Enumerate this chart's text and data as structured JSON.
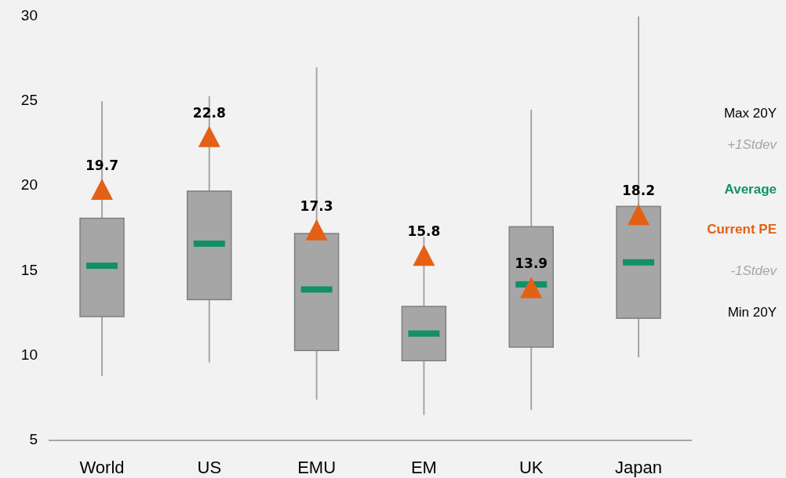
{
  "chart_data": {
    "type": "box",
    "categories": [
      "World",
      "US",
      "EMU",
      "EM",
      "UK",
      "Japan"
    ],
    "ylim": [
      5,
      30
    ],
    "yticks": [
      5,
      10,
      15,
      20,
      25,
      30
    ],
    "series": [
      {
        "color": "#a6a6a6",
        "boxes": [
          {
            "low": 8.8,
            "q1": 12.3,
            "median": 15.3,
            "q3": 18.1,
            "high": 25.0
          },
          {
            "low": 9.6,
            "q1": 13.3,
            "median": 16.6,
            "q3": 19.7,
            "high": 25.3
          },
          {
            "low": 7.4,
            "q1": 10.3,
            "median": 13.9,
            "q3": 17.2,
            "high": 27.0
          },
          {
            "low": 6.5,
            "q1": 9.7,
            "median": 11.3,
            "q3": 12.9,
            "high": 17.0
          },
          {
            "low": 6.8,
            "q1": 10.5,
            "median": 14.2,
            "q3": 17.6,
            "high": 24.5
          },
          {
            "low": 9.9,
            "q1": 12.2,
            "median": 15.5,
            "q3": 18.8,
            "high": 30.0
          }
        ]
      },
      {
        "type": "scatter",
        "name": "Current PE",
        "color": "#e46014",
        "marker": "triangle",
        "x": [
          "World",
          "US",
          "EMU",
          "EM",
          "UK",
          "Japan"
        ],
        "values": [
          19.7,
          22.8,
          17.3,
          15.8,
          13.9,
          18.2
        ]
      }
    ],
    "data_labels": true,
    "legend": "right",
    "annotations": [
      "Max 20Y",
      "+1Stdev",
      "Average",
      "-1Stdev",
      "Min 20Y"
    ]
  }
}
